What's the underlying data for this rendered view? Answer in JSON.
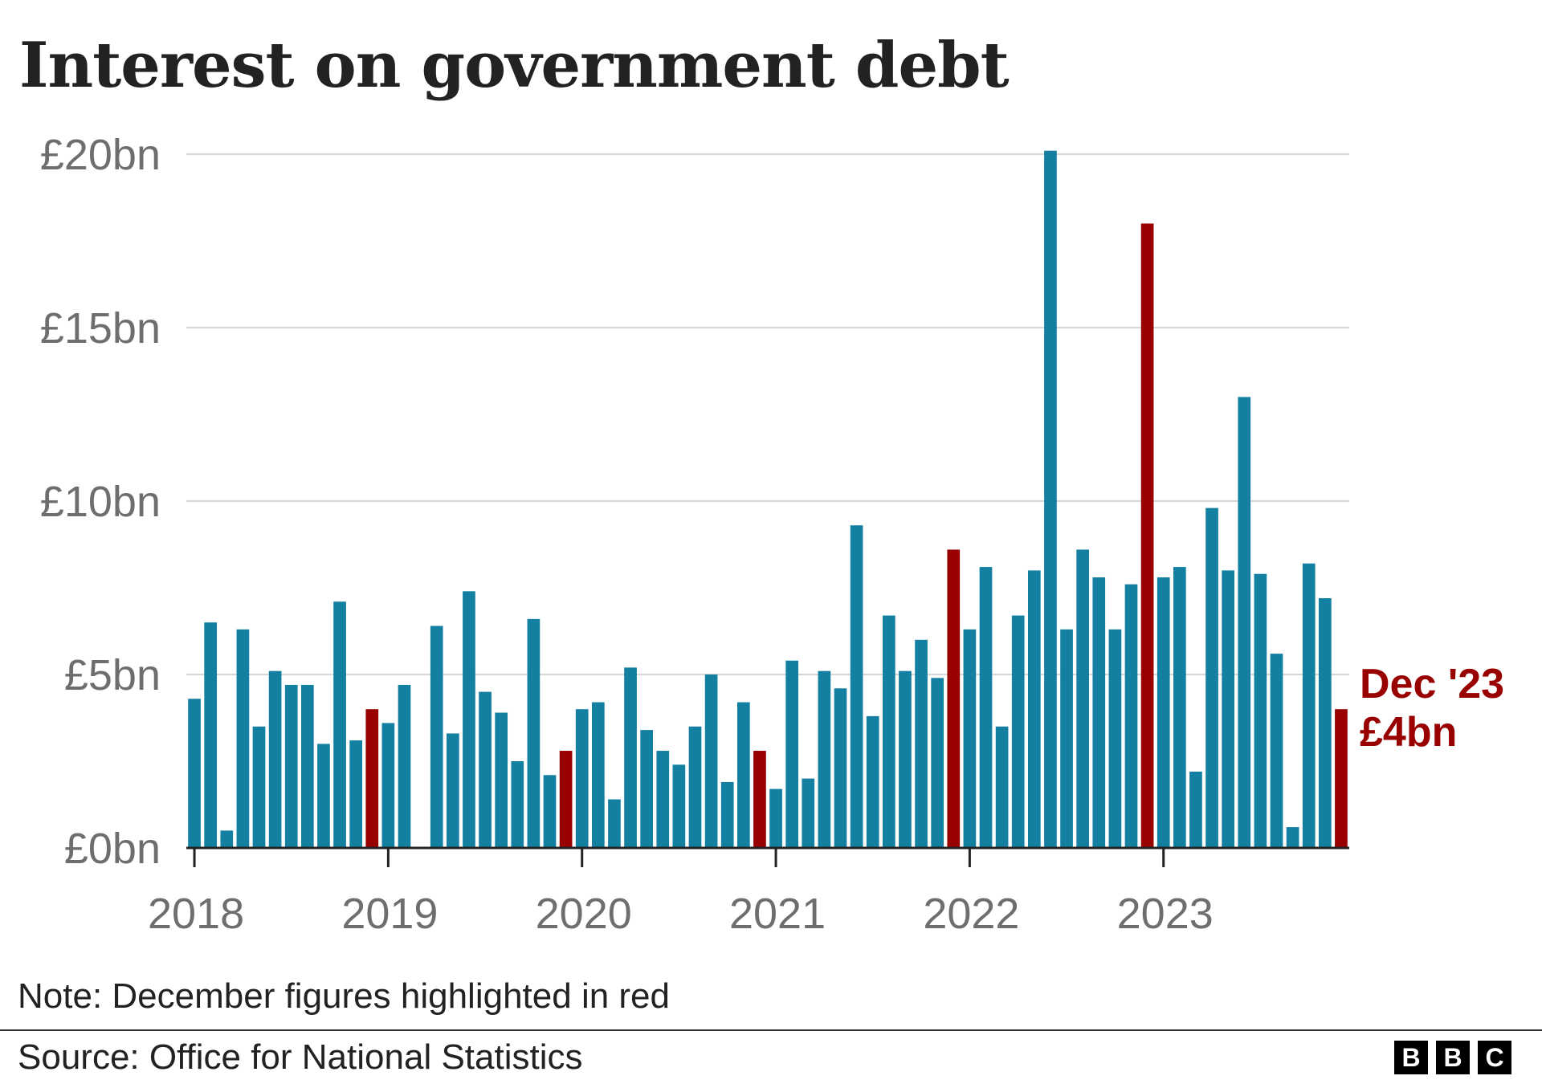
{
  "chart_data": {
    "type": "bar",
    "title": "Interest on government debt",
    "unit_prefix": "£",
    "unit_suffix": "bn",
    "ylim": [
      0,
      20
    ],
    "yticks": [
      0,
      5,
      10,
      15,
      20
    ],
    "ytick_labels": [
      "£0bn",
      "£5bn",
      "£10bn",
      "£15bn",
      "£20bn"
    ],
    "grid": true,
    "start": "2018-01",
    "x_tick_labels": [
      "2018",
      "2019",
      "2020",
      "2021",
      "2022",
      "2023"
    ],
    "months": [
      "Jan 2018",
      "Feb 2018",
      "Mar 2018",
      "Apr 2018",
      "May 2018",
      "Jun 2018",
      "Jul 2018",
      "Aug 2018",
      "Sep 2018",
      "Oct 2018",
      "Nov 2018",
      "Dec 2018",
      "Jan 2019",
      "Feb 2019",
      "Mar 2019",
      "Apr 2019",
      "May 2019",
      "Jun 2019",
      "Jul 2019",
      "Aug 2019",
      "Sep 2019",
      "Oct 2019",
      "Nov 2019",
      "Dec 2019",
      "Jan 2020",
      "Feb 2020",
      "Mar 2020",
      "Apr 2020",
      "May 2020",
      "Jun 2020",
      "Jul 2020",
      "Aug 2020",
      "Sep 2020",
      "Oct 2020",
      "Nov 2020",
      "Dec 2020",
      "Jan 2021",
      "Feb 2021",
      "Mar 2021",
      "Apr 2021",
      "May 2021",
      "Jun 2021",
      "Jul 2021",
      "Aug 2021",
      "Sep 2021",
      "Oct 2021",
      "Nov 2021",
      "Dec 2021",
      "Jan 2022",
      "Feb 2022",
      "Mar 2022",
      "Apr 2022",
      "May 2022",
      "Jun 2022",
      "Jul 2022",
      "Aug 2022",
      "Sep 2022",
      "Oct 2022",
      "Nov 2022",
      "Dec 2022",
      "Jan 2023",
      "Feb 2023",
      "Mar 2023",
      "Apr 2023",
      "May 2023",
      "Jun 2023",
      "Jul 2023",
      "Aug 2023",
      "Sep 2023",
      "Oct 2023",
      "Nov 2023",
      "Dec 2023"
    ],
    "values": [
      4.3,
      6.5,
      0.5,
      6.3,
      3.5,
      5.1,
      4.7,
      4.7,
      3.0,
      7.1,
      3.1,
      4.0,
      3.6,
      4.7,
      0.0,
      6.4,
      3.3,
      7.4,
      4.5,
      3.9,
      2.5,
      6.6,
      2.1,
      2.8,
      4.0,
      4.2,
      1.4,
      5.2,
      3.4,
      2.8,
      2.4,
      3.5,
      5.0,
      1.9,
      4.2,
      2.8,
      1.7,
      5.4,
      2.0,
      5.1,
      4.6,
      9.3,
      3.8,
      6.7,
      5.1,
      6.0,
      4.9,
      8.6,
      6.3,
      8.1,
      3.5,
      6.7,
      8.0,
      20.1,
      6.3,
      8.6,
      7.8,
      6.3,
      7.6,
      18.0,
      7.8,
      8.1,
      2.2,
      9.8,
      8.0,
      13.0,
      7.9,
      5.6,
      0.6,
      8.2,
      7.2,
      4.0
    ],
    "highlight_months": [
      "Dec 2018",
      "Dec 2019",
      "Dec 2020",
      "Dec 2021",
      "Dec 2022",
      "Dec 2023"
    ],
    "colors": {
      "bar": "#1380a1",
      "highlight": "#990000",
      "grid": "#d6d6d6",
      "axis": "#222222",
      "tick_text": "#6e6e6e"
    },
    "annotation": {
      "line1": "Dec '23",
      "line2": "£4bn"
    }
  },
  "note": "Note: December figures highlighted in red",
  "source": "Source: Office for National Statistics",
  "logo": {
    "letters": [
      "B",
      "B",
      "C"
    ]
  }
}
